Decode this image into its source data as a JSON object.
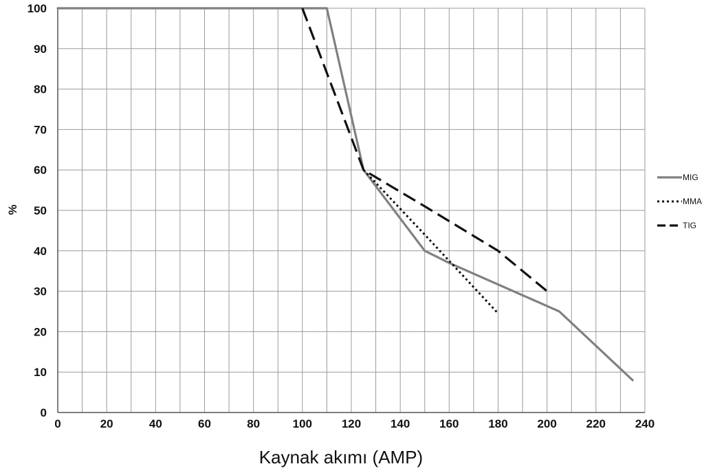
{
  "chart_data": {
    "type": "line",
    "xlabel": "Kaynak akımı (AMP)",
    "ylabel": "%",
    "xlim": [
      0,
      240
    ],
    "ylim": [
      0,
      100
    ],
    "x_ticks": [
      0,
      20,
      40,
      60,
      80,
      100,
      120,
      140,
      160,
      180,
      200,
      220,
      240
    ],
    "y_ticks": [
      0,
      10,
      20,
      30,
      40,
      50,
      60,
      70,
      80,
      90,
      100
    ],
    "grid": true,
    "legend_position": "right",
    "series": [
      {
        "name": "MIG",
        "style": "solid",
        "color": "#808080",
        "points": [
          [
            0,
            100
          ],
          [
            110,
            100
          ],
          [
            125,
            60
          ],
          [
            150,
            40
          ],
          [
            160,
            37
          ],
          [
            205,
            25
          ],
          [
            235,
            8
          ]
        ]
      },
      {
        "name": "MMA",
        "style": "dotted",
        "color": "#111111",
        "points": [
          [
            125,
            60
          ],
          [
            150,
            44
          ],
          [
            180,
            24.5
          ]
        ]
      },
      {
        "name": "TIG",
        "style": "dashed",
        "color": "#111111",
        "points": [
          [
            100,
            100
          ],
          [
            125,
            60
          ],
          [
            150,
            51
          ],
          [
            180,
            40
          ],
          [
            200,
            30
          ]
        ]
      }
    ]
  }
}
